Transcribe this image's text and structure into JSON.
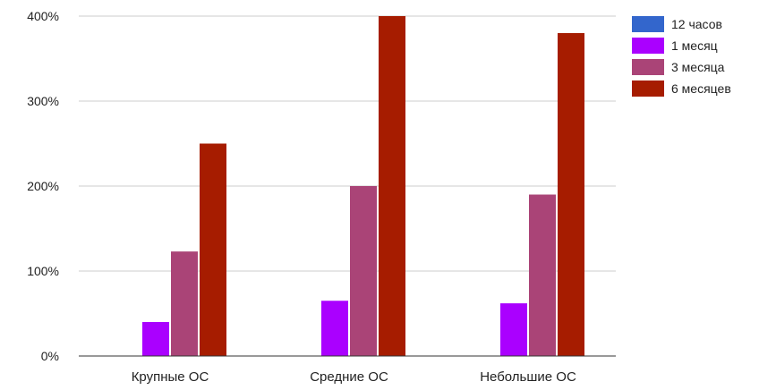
{
  "chart_data": {
    "type": "bar",
    "categories": [
      "Крупные ОС",
      "Средние ОС",
      "Небольшие ОС"
    ],
    "series": [
      {
        "name": "12 часов",
        "values": [
          0,
          0,
          0
        ],
        "color": "#3366cc"
      },
      {
        "name": "1 месяц",
        "values": [
          40,
          65,
          62
        ],
        "color": "#aa00ff"
      },
      {
        "name": "3 месяца",
        "values": [
          123,
          200,
          190
        ],
        "color": "#aa4477"
      },
      {
        "name": "6 месяцев",
        "values": [
          250,
          400,
          380
        ],
        "color": "#a61c00"
      }
    ],
    "ylim": [
      0,
      400
    ],
    "yticks": [
      0,
      100,
      200,
      300,
      400
    ],
    "ytick_labels": [
      "0%",
      "100%",
      "200%",
      "300%",
      "400%"
    ],
    "grid": true,
    "legend_position": "top-right"
  }
}
